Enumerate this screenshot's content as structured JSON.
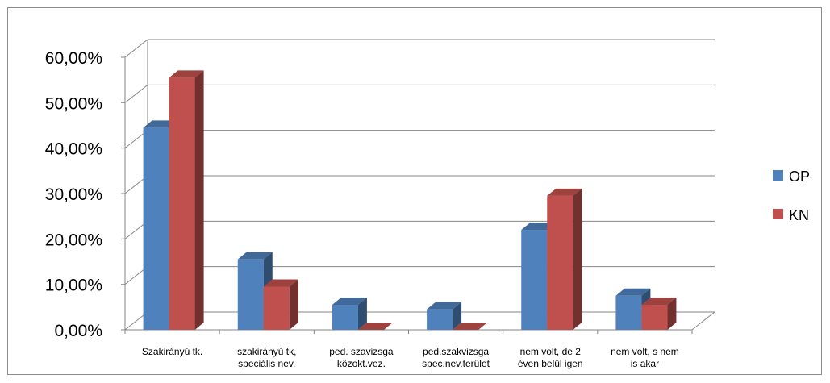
{
  "chart_data": {
    "type": "bar",
    "three_d": true,
    "categories": [
      [
        "Szakirányú tk."
      ],
      [
        "szakirányú tk,",
        "speciális nev."
      ],
      [
        "ped. szavizsga",
        "közokt.vez."
      ],
      [
        "ped.szakvizsga",
        "spec.nev.terület"
      ],
      [
        "nem volt, de 2",
        "éven belül igen"
      ],
      [
        "nem volt, s nem",
        "is akar"
      ]
    ],
    "series": [
      {
        "name": "OP",
        "values": [
          44.5,
          15.5,
          5.5,
          4.5,
          22.0,
          7.5
        ],
        "color": "#4F81BD"
      },
      {
        "name": "KN",
        "values": [
          55.5,
          9.5,
          0.0,
          0.0,
          29.5,
          5.5
        ],
        "color": "#C0504D"
      }
    ],
    "yticks": [
      "0,00%",
      "10,00%",
      "20,00%",
      "30,00%",
      "40,00%",
      "50,00%",
      "60,00%"
    ],
    "ylim": [
      0,
      60
    ],
    "grid": true,
    "legend_position": "right"
  }
}
